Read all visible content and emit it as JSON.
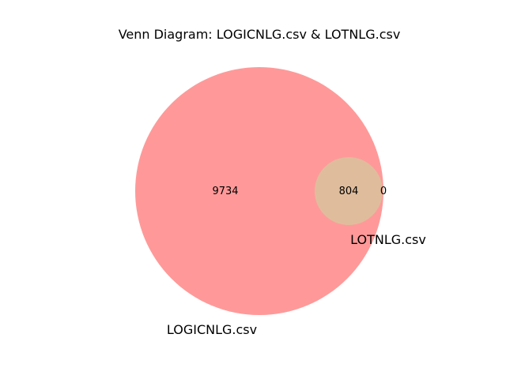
{
  "diagram": {
    "title": "Venn Diagram: LOGICNLG.csv & LOTNLG.csv",
    "sets": [
      {
        "name": "LOGICNLG.csv",
        "color": "#ff9999"
      },
      {
        "name": "LOTNLG.csv",
        "color": "#dfbd9c"
      }
    ],
    "counts": {
      "only_first": "9734",
      "intersection": "804",
      "only_second": "0"
    }
  }
}
